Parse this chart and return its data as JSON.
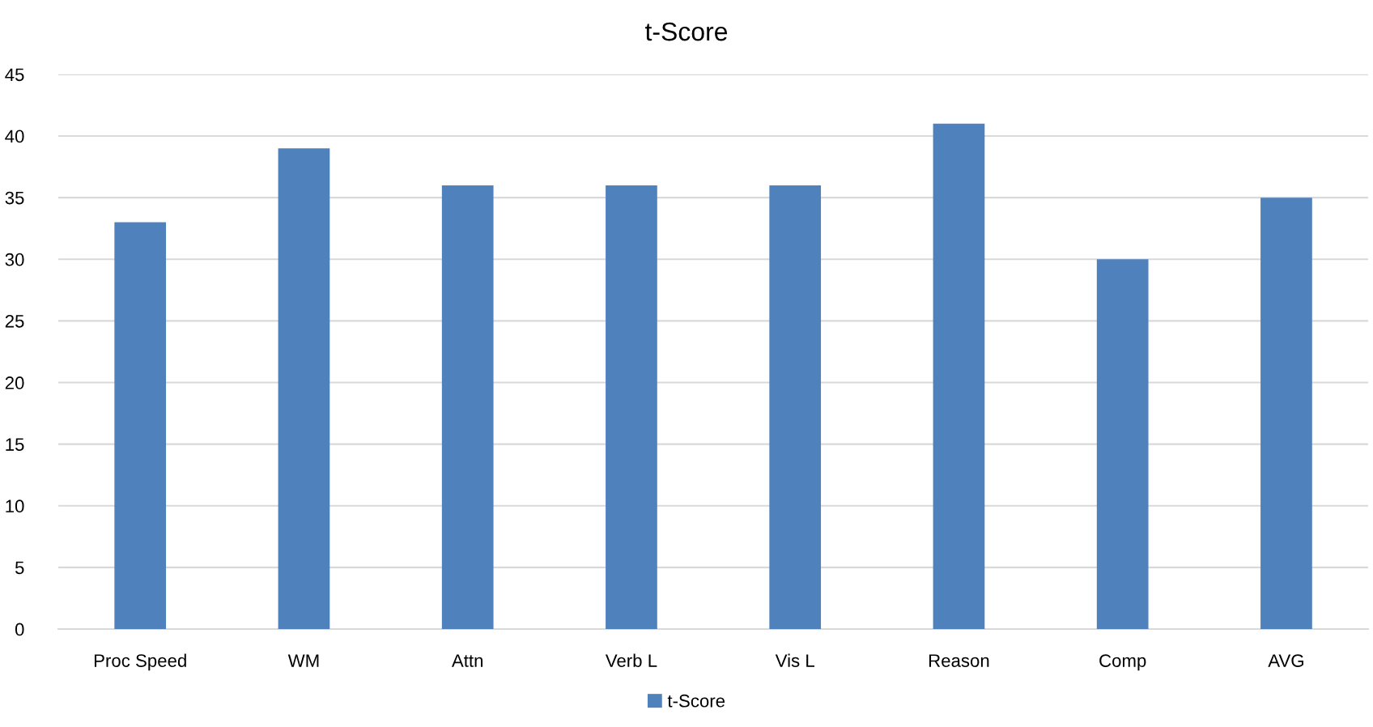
{
  "chart_data": {
    "type": "bar",
    "title": "t-Score",
    "categories": [
      "Proc Speed",
      "WM",
      "Attn",
      "Verb L",
      "Vis L",
      "Reason",
      "Comp",
      "AVG"
    ],
    "series": [
      {
        "name": "t-Score",
        "color": "#4f81bd",
        "values": [
          33,
          39,
          36,
          36,
          36,
          41,
          30,
          35
        ]
      }
    ],
    "ylim": [
      0,
      45
    ],
    "yticks": [
      0,
      5,
      10,
      15,
      20,
      25,
      30,
      35,
      40,
      45
    ],
    "grid": "y",
    "legend": "bottom"
  }
}
